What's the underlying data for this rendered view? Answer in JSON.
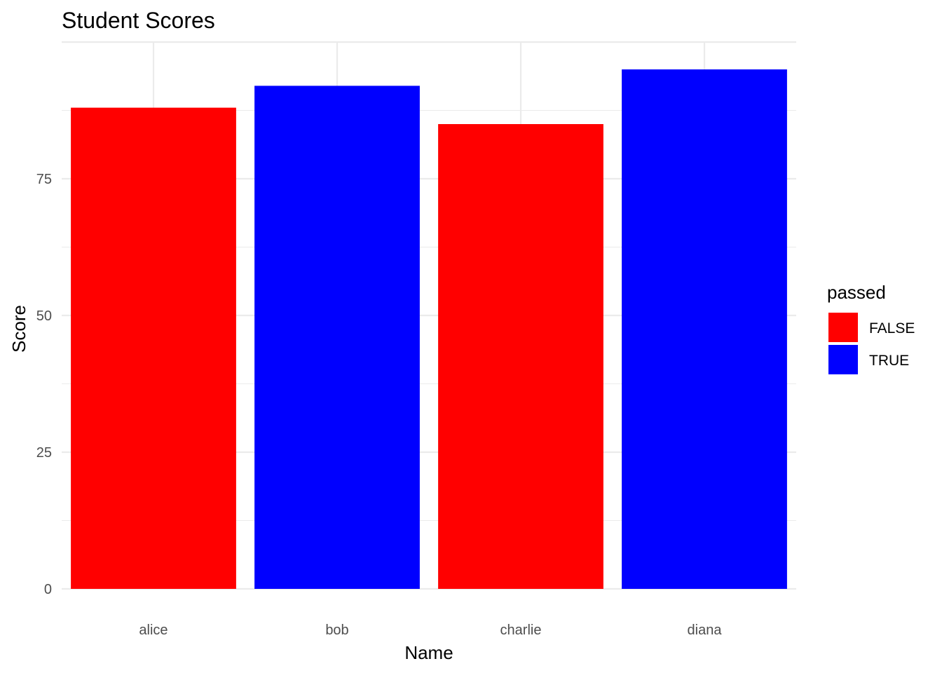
{
  "chart_data": {
    "type": "bar",
    "title": "Student Scores",
    "xlabel": "Name",
    "ylabel": "Score",
    "categories": [
      "alice",
      "bob",
      "charlie",
      "diana"
    ],
    "values": [
      88,
      92,
      85,
      95
    ],
    "groups": [
      "FALSE",
      "TRUE",
      "FALSE",
      "TRUE"
    ],
    "ylim": [
      0,
      100
    ],
    "yticks": [
      0,
      25,
      50,
      75
    ],
    "grid": true,
    "legend": {
      "title": "passed",
      "placement": "right",
      "entries": [
        {
          "label": "FALSE",
          "color": "#ff0000"
        },
        {
          "label": "TRUE",
          "color": "#0000ff"
        }
      ]
    }
  }
}
